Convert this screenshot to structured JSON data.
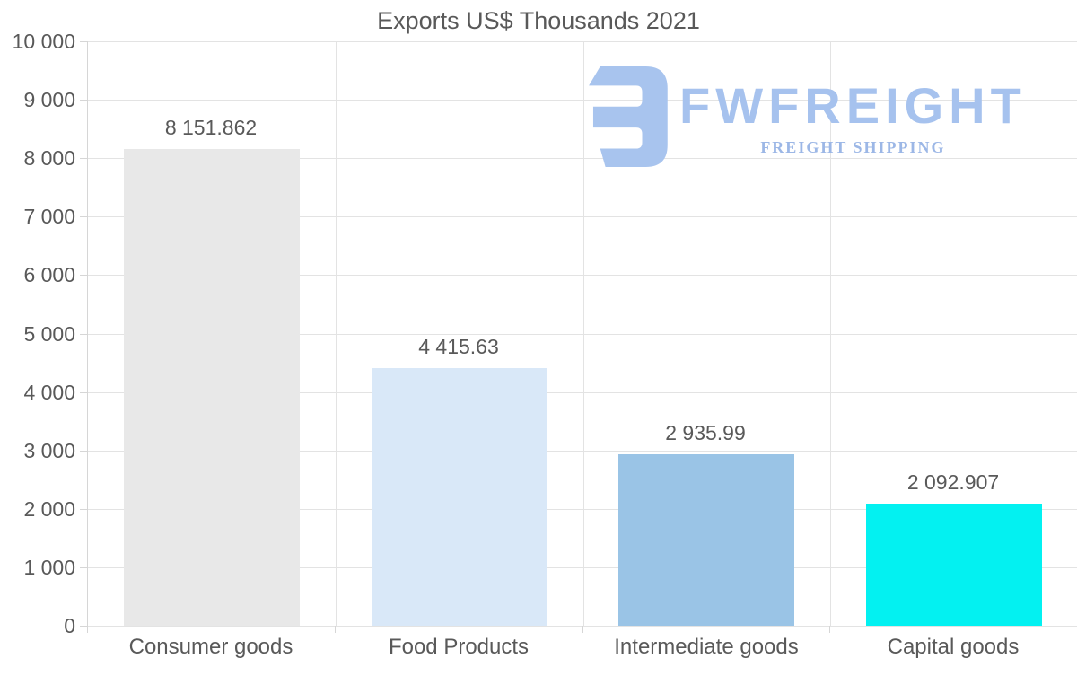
{
  "header": {
    "title": "Exports US$ Thousands 2021"
  },
  "logo": {
    "name": "FWFREIGHT",
    "tagline": "FREIGHT SHIPPING",
    "mark_color": "#a8c4ee",
    "wordmark_color": "#a6c2ee",
    "tagline_color": "#9cb7e6"
  },
  "colors": {
    "text": "#595959",
    "gridline": "#e3e3e3",
    "axis": "#d6d6d6",
    "background": "#ffffff"
  },
  "chart_data": {
    "type": "bar",
    "title": "Exports US$ Thousands 2021",
    "categories": [
      "Consumer goods",
      "Food Products",
      "Intermediate goods",
      "Capital goods"
    ],
    "values": [
      8151.862,
      4415.63,
      2935.99,
      2092.907
    ],
    "value_labels": [
      "8 151.862",
      "4 415.63",
      "2 935.99",
      "2 092.907"
    ],
    "bar_colors": [
      "#e8e8e8",
      "#d9e8f8",
      "#9ac4e6",
      "#03f1f1"
    ],
    "xlabel": "",
    "ylabel": "",
    "ylim": [
      0,
      10000
    ],
    "y_tick_step": 1000,
    "y_tick_labels": [
      "0",
      "1 000",
      "2 000",
      "3 000",
      "4 000",
      "5 000",
      "6 000",
      "7 000",
      "8 000",
      "9 000",
      "10 000"
    ],
    "grid": "horizontal gridlines + vertical category separators",
    "legend": "none"
  }
}
